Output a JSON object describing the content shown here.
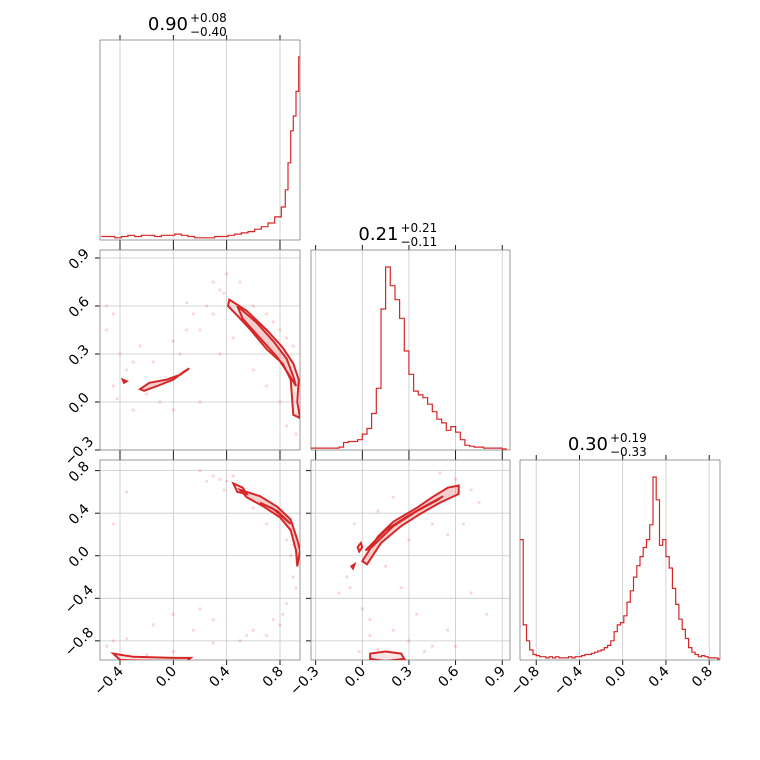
{
  "chart_data": {
    "type": "corner",
    "color": "#d62728",
    "grid": true,
    "diagonal": [
      {
        "title_value": "0.90",
        "title_plus": "+0.08",
        "title_minus": "−0.40",
        "range": [
          -0.55,
          0.95
        ],
        "bins_x": [
          -0.54,
          -0.49,
          -0.44,
          -0.39,
          -0.34,
          -0.29,
          -0.24,
          -0.19,
          -0.14,
          -0.09,
          -0.04,
          0.01,
          0.06,
          0.11,
          0.16,
          0.21,
          0.26,
          0.31,
          0.36,
          0.41,
          0.46,
          0.51,
          0.56,
          0.61,
          0.66,
          0.71,
          0.76,
          0.81,
          0.84,
          0.86,
          0.88,
          0.9,
          0.92,
          0.94
        ],
        "counts": [
          2,
          2,
          1,
          2,
          3,
          2,
          3,
          3,
          2,
          3,
          3,
          4,
          3,
          2,
          1,
          1,
          1,
          2,
          2,
          3,
          4,
          5,
          6,
          8,
          10,
          13,
          18,
          26,
          40,
          62,
          88,
          100,
          120,
          148
        ]
      },
      {
        "title_value": "0.21",
        "title_plus": "+0.21",
        "title_minus": "−0.11",
        "range": [
          -0.33,
          0.95
        ],
        "bins_x": [
          -0.33,
          -0.3,
          -0.27,
          -0.24,
          -0.21,
          -0.18,
          -0.15,
          -0.12,
          -0.09,
          -0.06,
          -0.03,
          0.0,
          0.03,
          0.06,
          0.09,
          0.12,
          0.15,
          0.18,
          0.21,
          0.24,
          0.27,
          0.3,
          0.33,
          0.36,
          0.39,
          0.42,
          0.45,
          0.48,
          0.51,
          0.54,
          0.57,
          0.6,
          0.63,
          0.66,
          0.69,
          0.72,
          0.75,
          0.78,
          0.81,
          0.84,
          0.87,
          0.9
        ],
        "counts": [
          1,
          1,
          1,
          1,
          1,
          1,
          2,
          7,
          8,
          8,
          10,
          16,
          22,
          38,
          65,
          150,
          195,
          175,
          160,
          140,
          105,
          80,
          62,
          58,
          55,
          48,
          40,
          32,
          28,
          20,
          24,
          18,
          10,
          4,
          3,
          2,
          2,
          1,
          1,
          1,
          1,
          0
        ]
      },
      {
        "title_value": "0.30",
        "title_plus": "+0.19",
        "title_minus": "−0.33",
        "range": [
          -0.95,
          0.9
        ],
        "bins_x": [
          -0.95,
          -0.92,
          -0.89,
          -0.86,
          -0.83,
          -0.8,
          -0.77,
          -0.74,
          -0.71,
          -0.68,
          -0.65,
          -0.62,
          -0.59,
          -0.56,
          -0.53,
          -0.5,
          -0.47,
          -0.44,
          -0.41,
          -0.38,
          -0.35,
          -0.32,
          -0.29,
          -0.26,
          -0.23,
          -0.2,
          -0.17,
          -0.14,
          -0.11,
          -0.08,
          -0.05,
          -0.02,
          0.01,
          0.04,
          0.07,
          0.1,
          0.13,
          0.16,
          0.19,
          0.22,
          0.25,
          0.28,
          0.31,
          0.34,
          0.37,
          0.4,
          0.43,
          0.46,
          0.49,
          0.52,
          0.55,
          0.58,
          0.61,
          0.64,
          0.67,
          0.7,
          0.73,
          0.76,
          0.79,
          0.82,
          0.85,
          0.88
        ],
        "counts": [
          105,
          30,
          16,
          8,
          4,
          3,
          2,
          2,
          1,
          2,
          1,
          2,
          1,
          1,
          1,
          2,
          1,
          2,
          2,
          3,
          4,
          4,
          5,
          6,
          7,
          8,
          10,
          12,
          16,
          24,
          30,
          32,
          38,
          50,
          60,
          72,
          82,
          90,
          98,
          105,
          118,
          160,
          140,
          100,
          105,
          90,
          80,
          62,
          48,
          35,
          26,
          18,
          10,
          6,
          4,
          2,
          3,
          2,
          1,
          1,
          1,
          0
        ]
      }
    ],
    "pairs": [
      {
        "row": 1,
        "col": 0,
        "xlim": [
          -0.55,
          0.95
        ],
        "ylim": [
          -0.3,
          0.95
        ],
        "contours": [
          [
            [
              -0.25,
              0.08
            ],
            [
              -0.18,
              0.12
            ],
            [
              -0.05,
              0.14
            ],
            [
              0.05,
              0.17
            ],
            [
              0.12,
              0.21
            ],
            [
              0.08,
              0.19
            ],
            [
              0.0,
              0.14
            ],
            [
              -0.12,
              0.1
            ],
            [
              -0.22,
              0.07
            ]
          ],
          [
            [
              0.42,
              0.64
            ],
            [
              0.55,
              0.57
            ],
            [
              0.7,
              0.45
            ],
            [
              0.82,
              0.34
            ],
            [
              0.9,
              0.24
            ],
            [
              0.94,
              0.14
            ],
            [
              0.93,
              0.0
            ],
            [
              0.95,
              -0.1
            ],
            [
              0.9,
              -0.08
            ],
            [
              0.88,
              0.14
            ],
            [
              0.82,
              0.24
            ],
            [
              0.7,
              0.33
            ],
            [
              0.58,
              0.45
            ],
            [
              0.48,
              0.54
            ],
            [
              0.41,
              0.6
            ]
          ],
          [
            [
              0.48,
              0.6
            ],
            [
              0.62,
              0.5
            ],
            [
              0.75,
              0.38
            ],
            [
              0.85,
              0.27
            ],
            [
              0.9,
              0.16
            ],
            [
              0.92,
              0.1
            ],
            [
              0.86,
              0.18
            ],
            [
              0.78,
              0.28
            ],
            [
              0.65,
              0.4
            ],
            [
              0.52,
              0.52
            ]
          ],
          [
            [
              -0.38,
              0.14
            ],
            [
              -0.35,
              0.13
            ],
            [
              -0.37,
              0.12
            ]
          ]
        ],
        "scatter": [
          [
            -0.45,
            0.55
          ],
          [
            -0.5,
            0.45
          ],
          [
            -0.4,
            0.3
          ],
          [
            -0.35,
            0.2
          ],
          [
            -0.3,
            0.25
          ],
          [
            -0.45,
            0.1
          ],
          [
            -0.15,
            0.25
          ],
          [
            0.05,
            0.3
          ],
          [
            0.2,
            0.45
          ],
          [
            0.25,
            0.6
          ],
          [
            0.3,
            0.75
          ],
          [
            0.35,
            0.7
          ],
          [
            0.4,
            0.8
          ],
          [
            0.3,
            0.55
          ],
          [
            0.0,
            0.38
          ],
          [
            -0.2,
            0.05
          ],
          [
            -0.1,
            0.0
          ],
          [
            0.0,
            -0.05
          ],
          [
            0.2,
            0.0
          ],
          [
            0.35,
            0.3
          ],
          [
            0.1,
            0.45
          ],
          [
            0.5,
            0.75
          ],
          [
            0.6,
            0.6
          ],
          [
            0.7,
            0.55
          ],
          [
            0.75,
            0.5
          ],
          [
            0.8,
            0.45
          ],
          [
            0.85,
            0.4
          ],
          [
            0.9,
            0.35
          ],
          [
            0.92,
            -0.2
          ],
          [
            0.85,
            -0.15
          ],
          [
            0.6,
            0.2
          ],
          [
            0.45,
            0.4
          ],
          [
            -0.42,
            0.02
          ],
          [
            -0.3,
            -0.05
          ],
          [
            0.15,
            0.55
          ],
          [
            0.1,
            0.62
          ],
          [
            0.38,
            0.68
          ],
          [
            -0.25,
            0.35
          ],
          [
            -0.5,
            0.6
          ],
          [
            0.7,
            0.1
          ],
          [
            0.8,
            0.0
          ]
        ]
      },
      {
        "row": 2,
        "col": 0,
        "xlim": [
          -0.55,
          0.95
        ],
        "ylim": [
          -0.98,
          0.9
        ],
        "contours": [
          [
            [
              0.5,
              0.62
            ],
            [
              0.65,
              0.56
            ],
            [
              0.78,
              0.46
            ],
            [
              0.88,
              0.34
            ],
            [
              0.93,
              0.15
            ],
            [
              0.95,
              0.05
            ],
            [
              0.93,
              -0.1
            ],
            [
              0.92,
              0.05
            ],
            [
              0.88,
              0.24
            ],
            [
              0.8,
              0.36
            ],
            [
              0.68,
              0.46
            ],
            [
              0.55,
              0.55
            ]
          ],
          [
            [
              0.45,
              0.68
            ],
            [
              0.48,
              0.6
            ],
            [
              0.55,
              0.58
            ],
            [
              0.52,
              0.64
            ]
          ],
          [
            [
              0.65,
              0.5
            ],
            [
              0.78,
              0.42
            ],
            [
              0.88,
              0.3
            ],
            [
              0.85,
              0.33
            ],
            [
              0.75,
              0.44
            ]
          ],
          [
            [
              -0.45,
              -0.92
            ],
            [
              -0.3,
              -0.95
            ],
            [
              0.0,
              -0.96
            ],
            [
              0.13,
              -0.96
            ],
            [
              0.1,
              -0.99
            ],
            [
              -0.1,
              -0.99
            ],
            [
              -0.4,
              -0.98
            ]
          ]
        ],
        "scatter": [
          [
            0.2,
            0.8
          ],
          [
            0.3,
            0.75
          ],
          [
            0.35,
            0.72
          ],
          [
            0.4,
            0.7
          ],
          [
            0.45,
            0.75
          ],
          [
            0.38,
            0.62
          ],
          [
            0.25,
            0.7
          ],
          [
            0.6,
            0.45
          ],
          [
            0.7,
            0.3
          ],
          [
            0.85,
            0.15
          ],
          [
            0.9,
            -0.2
          ],
          [
            0.92,
            -0.3
          ],
          [
            0.85,
            -0.45
          ],
          [
            0.75,
            -0.6
          ],
          [
            0.6,
            -0.7
          ],
          [
            0.3,
            -0.82
          ],
          [
            0.0,
            -0.9
          ],
          [
            -0.2,
            -0.93
          ],
          [
            -0.5,
            -0.85
          ],
          [
            -0.45,
            -0.8
          ],
          [
            -0.35,
            -0.78
          ],
          [
            0.8,
            -0.65
          ],
          [
            0.82,
            -0.55
          ],
          [
            0.55,
            -0.75
          ],
          [
            -0.15,
            -0.65
          ],
          [
            0.0,
            -0.55
          ],
          [
            0.15,
            -0.7
          ],
          [
            0.3,
            -0.6
          ],
          [
            0.2,
            -0.5
          ],
          [
            -0.35,
            0.6
          ],
          [
            -0.45,
            0.3
          ],
          [
            0.88,
            0.0
          ],
          [
            0.9,
            0.1
          ],
          [
            0.7,
            -0.75
          ],
          [
            0.5,
            -0.8
          ]
        ]
      },
      {
        "row": 2,
        "col": 1,
        "xlim": [
          -0.33,
          0.95
        ],
        "ylim": [
          -0.98,
          0.9
        ],
        "contours": [
          [
            [
              0.0,
              -0.05
            ],
            [
              0.1,
              0.18
            ],
            [
              0.2,
              0.32
            ],
            [
              0.35,
              0.45
            ],
            [
              0.45,
              0.55
            ],
            [
              0.55,
              0.64
            ],
            [
              0.62,
              0.66
            ],
            [
              0.62,
              0.58
            ],
            [
              0.5,
              0.5
            ],
            [
              0.38,
              0.4
            ],
            [
              0.25,
              0.28
            ],
            [
              0.12,
              0.12
            ],
            [
              0.03,
              -0.08
            ]
          ],
          [
            [
              0.02,
              0.05
            ],
            [
              0.15,
              0.24
            ],
            [
              0.3,
              0.38
            ],
            [
              0.42,
              0.48
            ],
            [
              0.52,
              0.56
            ],
            [
              0.48,
              0.52
            ],
            [
              0.35,
              0.42
            ],
            [
              0.2,
              0.28
            ],
            [
              0.06,
              0.08
            ]
          ],
          [
            [
              -0.03,
              0.08
            ],
            [
              -0.01,
              0.12
            ],
            [
              0.0,
              0.08
            ],
            [
              -0.02,
              0.04
            ]
          ],
          [
            [
              0.05,
              -0.92
            ],
            [
              0.15,
              -0.9
            ],
            [
              0.25,
              -0.92
            ],
            [
              0.27,
              -0.97
            ],
            [
              0.15,
              -0.99
            ],
            [
              0.05,
              -0.97
            ]
          ],
          [
            [
              -0.06,
              -0.12
            ],
            [
              -0.05,
              -0.08
            ],
            [
              -0.07,
              -0.1
            ]
          ]
        ],
        "scatter": [
          [
            -0.1,
            -0.2
          ],
          [
            -0.15,
            -0.35
          ],
          [
            -0.08,
            -0.3
          ],
          [
            0.0,
            -0.5
          ],
          [
            0.05,
            -0.75
          ],
          [
            0.1,
            -0.88
          ],
          [
            0.3,
            -0.8
          ],
          [
            0.45,
            -0.85
          ],
          [
            0.55,
            -0.7
          ],
          [
            0.7,
            -0.35
          ],
          [
            0.8,
            -0.55
          ],
          [
            0.6,
            -0.85
          ],
          [
            0.4,
            -0.9
          ],
          [
            0.2,
            -0.7
          ],
          [
            -0.05,
            0.3
          ],
          [
            0.1,
            0.42
          ],
          [
            0.2,
            0.55
          ],
          [
            0.5,
            0.78
          ],
          [
            0.6,
            0.72
          ],
          [
            0.7,
            0.62
          ],
          [
            0.75,
            0.5
          ],
          [
            0.45,
            0.3
          ],
          [
            0.3,
            0.15
          ],
          [
            0.15,
            -0.1
          ],
          [
            0.25,
            -0.3
          ],
          [
            0.05,
            -0.6
          ],
          [
            0.55,
            0.2
          ],
          [
            0.65,
            0.3
          ],
          [
            -0.02,
            -0.9
          ],
          [
            0.35,
            -0.55
          ]
        ]
      }
    ],
    "axes_ticks": {
      "col0_x": [
        "−0.4",
        "0.0",
        "0.4",
        "0.8"
      ],
      "col1_x": [
        "−0.3",
        "0.0",
        "0.3",
        "0.6",
        "0.9"
      ],
      "col2_x": [
        "−0.8",
        "−0.4",
        "0.0",
        "0.4",
        "0.8"
      ],
      "row1_y": [
        "−0.3",
        "0.0",
        "0.3",
        "0.6",
        "0.9"
      ],
      "row2_y": [
        "−0.8",
        "−0.4",
        "0.0",
        "0.4",
        "0.8"
      ]
    }
  }
}
